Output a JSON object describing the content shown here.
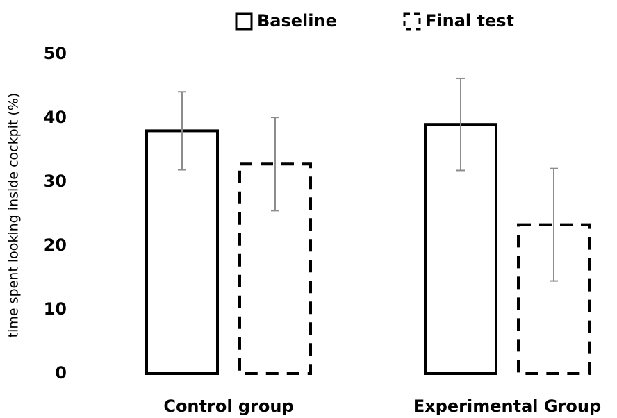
{
  "chart_data": {
    "type": "bar",
    "categories": [
      "Control group",
      "Experimental Group"
    ],
    "series": [
      {
        "name": "Baseline",
        "color": "#000000",
        "fill": "#ffffff",
        "line_style": "solid",
        "values": [
          38,
          39
        ],
        "errors": [
          6.1,
          7.2
        ]
      },
      {
        "name": "Final test",
        "color": "#000000",
        "fill": "#ffffff",
        "line_style": "dashed",
        "values": [
          32.8,
          23.3
        ],
        "errors": [
          7.3,
          8.8
        ]
      }
    ],
    "y_label": "time spent looking inside cockpit (%)",
    "ylim": [
      0,
      50
    ],
    "yticks": [
      0,
      10,
      20,
      30,
      40,
      50
    ],
    "grid": false,
    "error_color": "#8c8c8c",
    "legend": "top"
  }
}
